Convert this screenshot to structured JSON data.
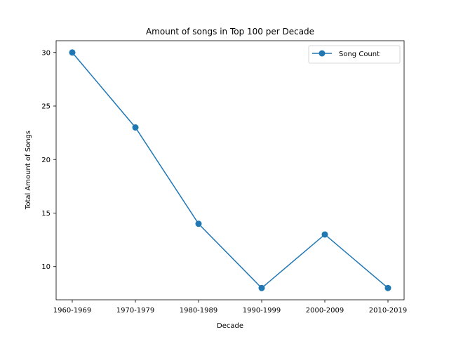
{
  "chart_data": {
    "type": "line",
    "title": "Amount of songs in Top 100 per Decade",
    "xlabel": "Decade",
    "ylabel": "Total Amount of Songs",
    "categories": [
      "1960-1969",
      "1970-1979",
      "1980-1989",
      "1990-1999",
      "2000-2009",
      "2010-2019"
    ],
    "series": [
      {
        "name": "Song Count",
        "values": [
          30,
          23,
          14,
          8,
          13,
          8
        ],
        "color": "#1f77b4",
        "marker": "circle"
      }
    ],
    "ylim": [
      6.9,
      31.1
    ],
    "yticks": [
      10,
      15,
      20,
      25,
      30
    ],
    "grid": false,
    "legend": "top-right"
  }
}
